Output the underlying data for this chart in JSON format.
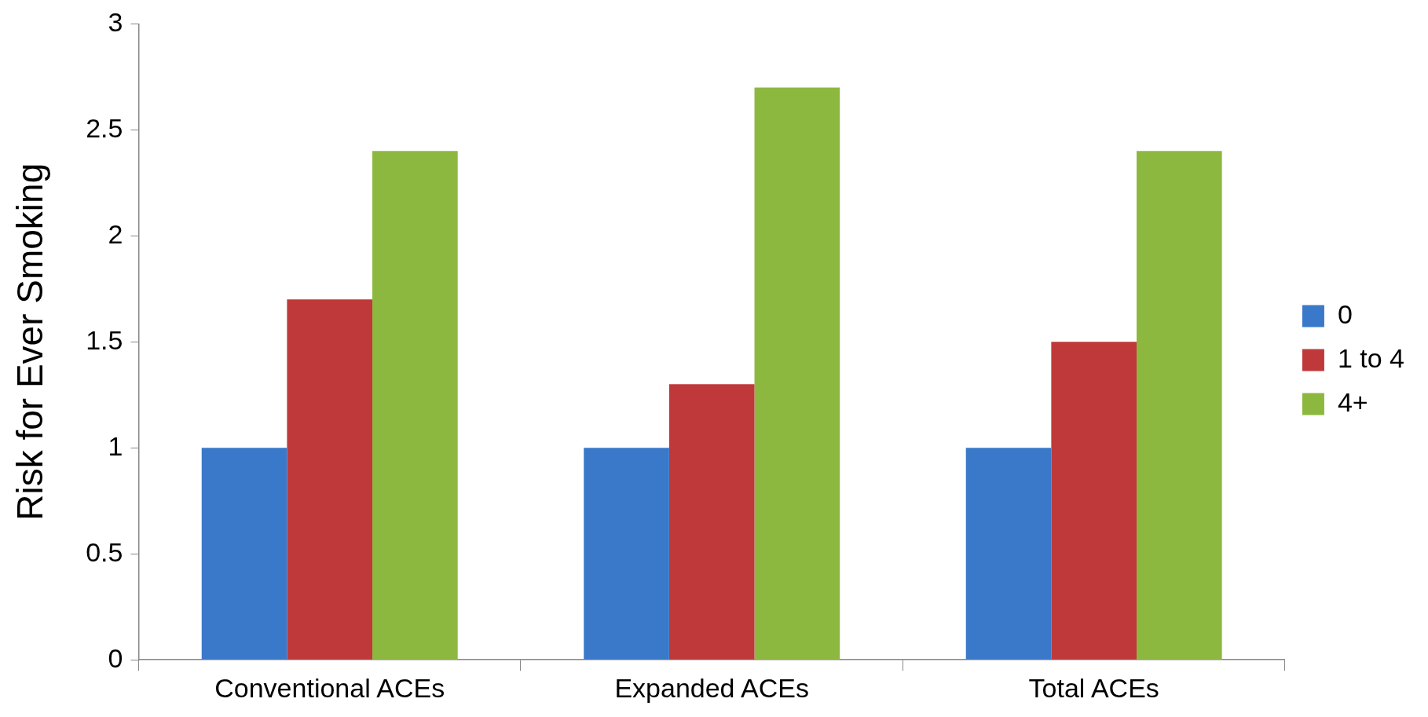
{
  "chart_data": {
    "type": "bar",
    "ylabel": "Risk for Ever Smoking",
    "categories": [
      "Conventional ACEs",
      "Expanded ACEs",
      "Total ACEs"
    ],
    "series": [
      {
        "name": "0",
        "color": "#3a78c9",
        "values": [
          1,
          1,
          1
        ]
      },
      {
        "name": "1 to 4",
        "color": "#c0393a",
        "values": [
          1.7,
          1.3,
          1.5
        ]
      },
      {
        "name": "4+",
        "color": "#8db83f",
        "values": [
          2.4,
          2.7,
          2.4
        ]
      }
    ],
    "ylim": [
      0,
      3
    ],
    "yticks": [
      0,
      0.5,
      1,
      1.5,
      2,
      2.5,
      3
    ],
    "grid": false,
    "legend": "right"
  }
}
